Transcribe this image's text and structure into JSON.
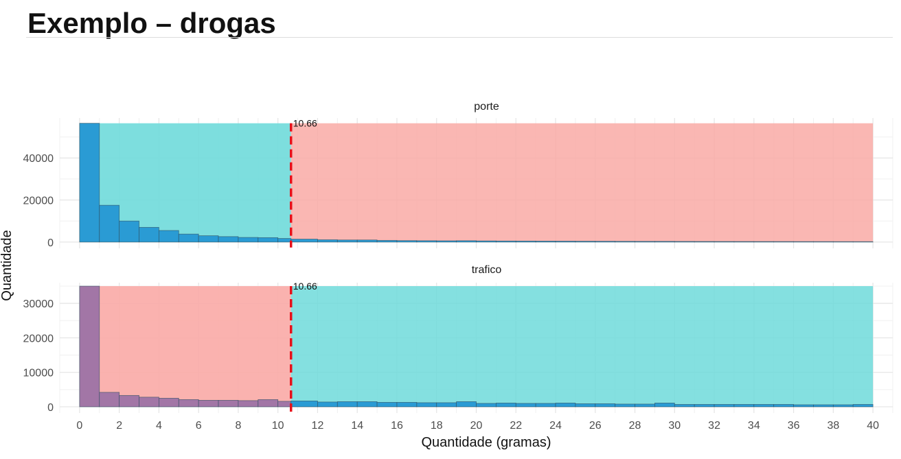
{
  "slide": {
    "title": "Exemplo – drogas"
  },
  "chart_data": {
    "type": "bar",
    "xlabel": "Quantidade (gramas)",
    "ylabel": "Quantidade",
    "xlim": [
      -1,
      41
    ],
    "x_ticks": [
      0,
      2,
      4,
      6,
      8,
      10,
      12,
      14,
      16,
      18,
      20,
      22,
      24,
      26,
      28,
      30,
      32,
      34,
      36,
      38,
      40
    ],
    "threshold": {
      "value": 10.66,
      "label": "10.66",
      "color": "#e8101a"
    },
    "colors": {
      "bar_blue": "#2a9bd4",
      "bar_purple": "#a276a6",
      "region_teal": "#6fdada",
      "region_salmon": "#f9aaa6"
    },
    "panels": [
      {
        "name": "porte",
        "ylim": [
          -3000,
          59000
        ],
        "y_ticks": [
          0,
          20000,
          40000
        ],
        "y_tick_labels": [
          "0",
          "20000",
          "40000"
        ],
        "left_region": "teal",
        "right_region": "salmon",
        "bins": [
          {
            "x0": 0,
            "x1": 1,
            "y": 56500
          },
          {
            "x0": 1,
            "x1": 2,
            "y": 17500
          },
          {
            "x0": 2,
            "x1": 3,
            "y": 10000
          },
          {
            "x0": 3,
            "x1": 4,
            "y": 7000
          },
          {
            "x0": 4,
            "x1": 5,
            "y": 5500
          },
          {
            "x0": 5,
            "x1": 6,
            "y": 3800
          },
          {
            "x0": 6,
            "x1": 7,
            "y": 3000
          },
          {
            "x0": 7,
            "x1": 8,
            "y": 2600
          },
          {
            "x0": 8,
            "x1": 9,
            "y": 2200
          },
          {
            "x0": 9,
            "x1": 10,
            "y": 2100
          },
          {
            "x0": 10,
            "x1": 10.66,
            "y": 1700
          },
          {
            "x0": 10.66,
            "x1": 12,
            "y": 1400
          },
          {
            "x0": 12,
            "x1": 13,
            "y": 1100
          },
          {
            "x0": 13,
            "x1": 14,
            "y": 1000
          },
          {
            "x0": 14,
            "x1": 15,
            "y": 1000
          },
          {
            "x0": 15,
            "x1": 16,
            "y": 800
          },
          {
            "x0": 16,
            "x1": 17,
            "y": 700
          },
          {
            "x0": 17,
            "x1": 18,
            "y": 650
          },
          {
            "x0": 18,
            "x1": 19,
            "y": 600
          },
          {
            "x0": 19,
            "x1": 20,
            "y": 650
          },
          {
            "x0": 20,
            "x1": 21,
            "y": 550
          },
          {
            "x0": 21,
            "x1": 22,
            "y": 500
          },
          {
            "x0": 22,
            "x1": 23,
            "y": 480
          },
          {
            "x0": 23,
            "x1": 24,
            "y": 450
          },
          {
            "x0": 24,
            "x1": 25,
            "y": 430
          },
          {
            "x0": 25,
            "x1": 26,
            "y": 400
          },
          {
            "x0": 26,
            "x1": 27,
            "y": 380
          },
          {
            "x0": 27,
            "x1": 28,
            "y": 350
          },
          {
            "x0": 28,
            "x1": 29,
            "y": 330
          },
          {
            "x0": 29,
            "x1": 30,
            "y": 330
          },
          {
            "x0": 30,
            "x1": 31,
            "y": 300
          },
          {
            "x0": 31,
            "x1": 32,
            "y": 280
          },
          {
            "x0": 32,
            "x1": 33,
            "y": 270
          },
          {
            "x0": 33,
            "x1": 34,
            "y": 260
          },
          {
            "x0": 34,
            "x1": 35,
            "y": 250
          },
          {
            "x0": 35,
            "x1": 36,
            "y": 240
          },
          {
            "x0": 36,
            "x1": 37,
            "y": 230
          },
          {
            "x0": 37,
            "x1": 38,
            "y": 220
          },
          {
            "x0": 38,
            "x1": 39,
            "y": 210
          },
          {
            "x0": 39,
            "x1": 40,
            "y": 200
          }
        ]
      },
      {
        "name": "trafico",
        "ylim": [
          -1800,
          36000
        ],
        "y_ticks": [
          0,
          10000,
          20000,
          30000
        ],
        "y_tick_labels": [
          "0",
          "10000",
          "20000",
          "30000"
        ],
        "left_region": "salmon",
        "right_region": "teal",
        "bins": [
          {
            "x0": 0,
            "x1": 1,
            "y": 35000
          },
          {
            "x0": 1,
            "x1": 2,
            "y": 4200
          },
          {
            "x0": 2,
            "x1": 3,
            "y": 3300
          },
          {
            "x0": 3,
            "x1": 4,
            "y": 2800
          },
          {
            "x0": 4,
            "x1": 5,
            "y": 2500
          },
          {
            "x0": 5,
            "x1": 6,
            "y": 2100
          },
          {
            "x0": 6,
            "x1": 7,
            "y": 1900
          },
          {
            "x0": 7,
            "x1": 8,
            "y": 1900
          },
          {
            "x0": 8,
            "x1": 9,
            "y": 1800
          },
          {
            "x0": 9,
            "x1": 10,
            "y": 2100
          },
          {
            "x0": 10,
            "x1": 10.66,
            "y": 1600
          },
          {
            "x0": 10.66,
            "x1": 12,
            "y": 1700
          },
          {
            "x0": 12,
            "x1": 13,
            "y": 1400
          },
          {
            "x0": 13,
            "x1": 14,
            "y": 1500
          },
          {
            "x0": 14,
            "x1": 15,
            "y": 1500
          },
          {
            "x0": 15,
            "x1": 16,
            "y": 1300
          },
          {
            "x0": 16,
            "x1": 17,
            "y": 1300
          },
          {
            "x0": 17,
            "x1": 18,
            "y": 1200
          },
          {
            "x0": 18,
            "x1": 19,
            "y": 1200
          },
          {
            "x0": 19,
            "x1": 20,
            "y": 1500
          },
          {
            "x0": 20,
            "x1": 21,
            "y": 1000
          },
          {
            "x0": 21,
            "x1": 22,
            "y": 1100
          },
          {
            "x0": 22,
            "x1": 23,
            "y": 1000
          },
          {
            "x0": 23,
            "x1": 24,
            "y": 1000
          },
          {
            "x0": 24,
            "x1": 25,
            "y": 1100
          },
          {
            "x0": 25,
            "x1": 26,
            "y": 900
          },
          {
            "x0": 26,
            "x1": 27,
            "y": 900
          },
          {
            "x0": 27,
            "x1": 28,
            "y": 800
          },
          {
            "x0": 28,
            "x1": 29,
            "y": 800
          },
          {
            "x0": 29,
            "x1": 30,
            "y": 1100
          },
          {
            "x0": 30,
            "x1": 31,
            "y": 700
          },
          {
            "x0": 31,
            "x1": 32,
            "y": 700
          },
          {
            "x0": 32,
            "x1": 33,
            "y": 700
          },
          {
            "x0": 33,
            "x1": 34,
            "y": 700
          },
          {
            "x0": 34,
            "x1": 35,
            "y": 700
          },
          {
            "x0": 35,
            "x1": 36,
            "y": 700
          },
          {
            "x0": 36,
            "x1": 37,
            "y": 600
          },
          {
            "x0": 37,
            "x1": 38,
            "y": 600
          },
          {
            "x0": 38,
            "x1": 39,
            "y": 600
          },
          {
            "x0": 39,
            "x1": 40,
            "y": 700
          }
        ]
      }
    ]
  }
}
